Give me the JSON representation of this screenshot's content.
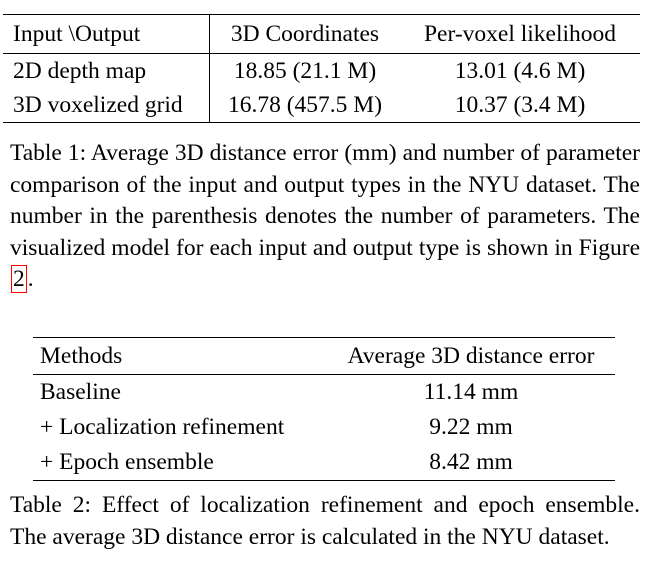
{
  "table1": {
    "headers": [
      "Input \\Output",
      "3D Coordinates",
      "Per-voxel likelihood"
    ],
    "rows": [
      [
        "2D depth map",
        "18.85 (21.1 M)",
        "13.01 (4.6 M)"
      ],
      [
        "3D voxelized grid",
        "16.78 (457.5 M)",
        "10.37 (3.4 M)"
      ]
    ],
    "caption_text": "Table 1: Average 3D distance error (mm) and number of parameter comparison of the input and output types in the NYU dataset. The number in the parenthesis denotes the number of parameters. The visualized model for each input and output type is shown in Figure ",
    "caption_ref": "2",
    "caption_end": "."
  },
  "table2": {
    "headers": [
      "Methods",
      "Average 3D distance error"
    ],
    "rows": [
      [
        "Baseline",
        "11.14 mm"
      ],
      [
        "+ Localization refinement",
        "9.22 mm"
      ],
      [
        "+ Epoch ensemble",
        "8.42 mm"
      ]
    ],
    "caption_text": "Table 2: Effect of localization refinement and epoch ensemble. The average 3D distance error is calculated in the NYU dataset."
  }
}
